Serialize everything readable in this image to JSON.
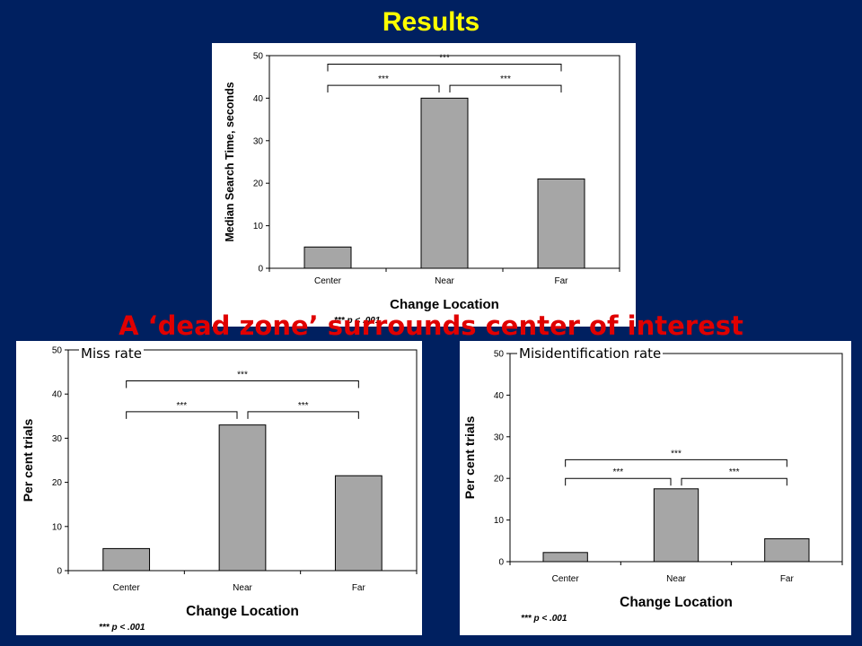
{
  "slide": {
    "title": "Results",
    "subtitle": "A ‘dead zone’ surrounds center of interest",
    "colors": {
      "background": "#002060",
      "title": "#FFFF00",
      "subtitle": "#E00000",
      "bar": "#A6A6A6"
    }
  },
  "panels": {
    "top": {
      "label": ""
    },
    "left": {
      "label": "Miss rate"
    },
    "right": {
      "label": "Misidentification rate"
    }
  },
  "chart_data": [
    {
      "id": "top",
      "type": "bar",
      "categories": [
        "Center",
        "Near",
        "Far"
      ],
      "values": [
        5,
        40,
        21
      ],
      "ylabel": "Median Search Time, seconds",
      "xlabel": "Change Location",
      "ylim": [
        0,
        50
      ],
      "yticks": [
        0,
        10,
        20,
        30,
        40,
        50
      ],
      "grid": false,
      "brackets": [
        {
          "from": 0,
          "to": 2,
          "level": 48,
          "label": "***"
        },
        {
          "from": 0,
          "to": 1,
          "level": 43,
          "label": "***"
        },
        {
          "from": 1,
          "to": 2,
          "level": 43,
          "label": "***"
        }
      ],
      "note": "*** p < .001"
    },
    {
      "id": "left",
      "type": "bar",
      "categories": [
        "Center",
        "Near",
        "Far"
      ],
      "values": [
        5,
        33,
        21.5
      ],
      "ylabel": "Per cent trials",
      "xlabel": "Change Location",
      "ylim": [
        0,
        50
      ],
      "yticks": [
        0,
        10,
        20,
        30,
        40,
        50
      ],
      "grid": false,
      "brackets": [
        {
          "from": 0,
          "to": 2,
          "level": 43,
          "label": "***"
        },
        {
          "from": 0,
          "to": 1,
          "level": 36,
          "label": "***"
        },
        {
          "from": 1,
          "to": 2,
          "level": 36,
          "label": "***"
        }
      ],
      "note": "*** p < .001"
    },
    {
      "id": "right",
      "type": "bar",
      "categories": [
        "Center",
        "Near",
        "Far"
      ],
      "values": [
        2.2,
        17.5,
        5.5
      ],
      "ylabel": "Per cent trials",
      "xlabel": "Change Location",
      "ylim": [
        0,
        50
      ],
      "yticks": [
        0,
        10,
        20,
        30,
        40,
        50
      ],
      "grid": false,
      "brackets": [
        {
          "from": 0,
          "to": 2,
          "level": 24.5,
          "label": "***"
        },
        {
          "from": 0,
          "to": 1,
          "level": 20,
          "label": "***"
        },
        {
          "from": 1,
          "to": 2,
          "level": 20,
          "label": "***"
        }
      ],
      "note": "*** p < .001"
    }
  ]
}
